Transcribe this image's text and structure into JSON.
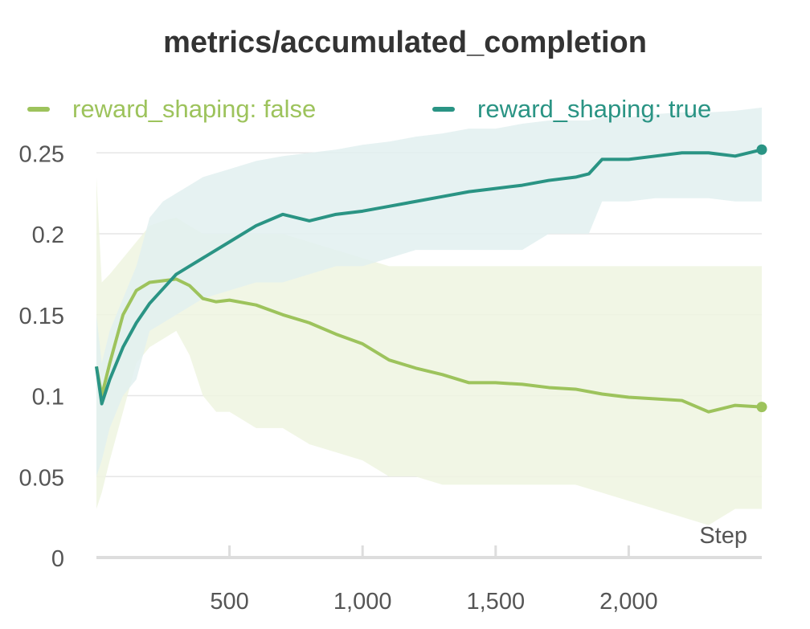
{
  "chart_data": {
    "type": "line",
    "title": "metrics/accumulated_completion",
    "xlabel": "Step",
    "ylabel": "",
    "xlim": [
      0,
      2500
    ],
    "ylim": [
      0,
      0.27
    ],
    "x_ticks": [
      {
        "value": 500,
        "label": "500"
      },
      {
        "value": 1000,
        "label": "1,000"
      },
      {
        "value": 1500,
        "label": "1,500"
      },
      {
        "value": 2000,
        "label": "2,000"
      }
    ],
    "y_ticks": [
      {
        "value": 0,
        "label": "0"
      },
      {
        "value": 0.05,
        "label": "0.05"
      },
      {
        "value": 0.1,
        "label": "0.1"
      },
      {
        "value": 0.15,
        "label": "0.15"
      },
      {
        "value": 0.2,
        "label": "0.2"
      },
      {
        "value": 0.25,
        "label": "0.25"
      }
    ],
    "grid": true,
    "legend_position": "top",
    "series": [
      {
        "name": "reward_shaping: false",
        "color": "#9dc35c",
        "band_color": "#eef4e1",
        "x": [
          0,
          20,
          50,
          100,
          150,
          200,
          250,
          300,
          350,
          400,
          450,
          500,
          600,
          700,
          800,
          900,
          1000,
          1100,
          1200,
          1300,
          1400,
          1500,
          1600,
          1700,
          1800,
          1900,
          2000,
          2100,
          2200,
          2300,
          2400,
          2500
        ],
        "values": [
          0.118,
          0.1,
          0.12,
          0.15,
          0.165,
          0.17,
          0.171,
          0.172,
          0.168,
          0.16,
          0.158,
          0.159,
          0.156,
          0.15,
          0.145,
          0.138,
          0.132,
          0.122,
          0.117,
          0.113,
          0.108,
          0.108,
          0.107,
          0.105,
          0.104,
          0.101,
          0.099,
          0.098,
          0.097,
          0.09,
          0.094,
          0.093
        ],
        "upper": [
          0.235,
          0.17,
          0.175,
          0.185,
          0.195,
          0.205,
          0.208,
          0.21,
          0.205,
          0.2,
          0.2,
          0.2,
          0.2,
          0.2,
          0.195,
          0.19,
          0.185,
          0.18,
          0.18,
          0.18,
          0.18,
          0.18,
          0.18,
          0.18,
          0.18,
          0.18,
          0.18,
          0.18,
          0.18,
          0.18,
          0.18,
          0.18
        ],
        "lower": [
          0.03,
          0.04,
          0.06,
          0.09,
          0.12,
          0.13,
          0.135,
          0.14,
          0.125,
          0.1,
          0.09,
          0.09,
          0.08,
          0.08,
          0.07,
          0.065,
          0.06,
          0.05,
          0.05,
          0.045,
          0.045,
          0.045,
          0.045,
          0.045,
          0.045,
          0.04,
          0.035,
          0.03,
          0.025,
          0.02,
          0.03,
          0.03
        ]
      },
      {
        "name": "reward_shaping: true",
        "color": "#2a9484",
        "band_color": "#e2f0f0",
        "x": [
          0,
          20,
          50,
          100,
          150,
          200,
          250,
          300,
          350,
          400,
          500,
          600,
          700,
          800,
          900,
          1000,
          1100,
          1200,
          1300,
          1400,
          1500,
          1600,
          1700,
          1800,
          1850,
          1900,
          2000,
          2100,
          2200,
          2300,
          2400,
          2500
        ],
        "values": [
          0.118,
          0.095,
          0.11,
          0.13,
          0.145,
          0.157,
          0.166,
          0.175,
          0.18,
          0.185,
          0.195,
          0.205,
          0.212,
          0.208,
          0.212,
          0.214,
          0.217,
          0.22,
          0.223,
          0.226,
          0.228,
          0.23,
          0.233,
          0.235,
          0.237,
          0.246,
          0.246,
          0.248,
          0.25,
          0.25,
          0.248,
          0.252
        ],
        "upper": [
          0.15,
          0.12,
          0.14,
          0.16,
          0.18,
          0.21,
          0.22,
          0.225,
          0.23,
          0.235,
          0.24,
          0.245,
          0.248,
          0.25,
          0.252,
          0.255,
          0.257,
          0.26,
          0.262,
          0.265,
          0.265,
          0.268,
          0.27,
          0.27,
          0.27,
          0.272,
          0.272,
          0.274,
          0.275,
          0.275,
          0.276,
          0.278
        ],
        "lower": [
          0.05,
          0.06,
          0.08,
          0.1,
          0.11,
          0.14,
          0.145,
          0.15,
          0.155,
          0.16,
          0.165,
          0.17,
          0.17,
          0.175,
          0.18,
          0.18,
          0.185,
          0.19,
          0.19,
          0.19,
          0.19,
          0.19,
          0.2,
          0.2,
          0.2,
          0.22,
          0.22,
          0.222,
          0.222,
          0.222,
          0.22,
          0.22
        ]
      }
    ]
  }
}
